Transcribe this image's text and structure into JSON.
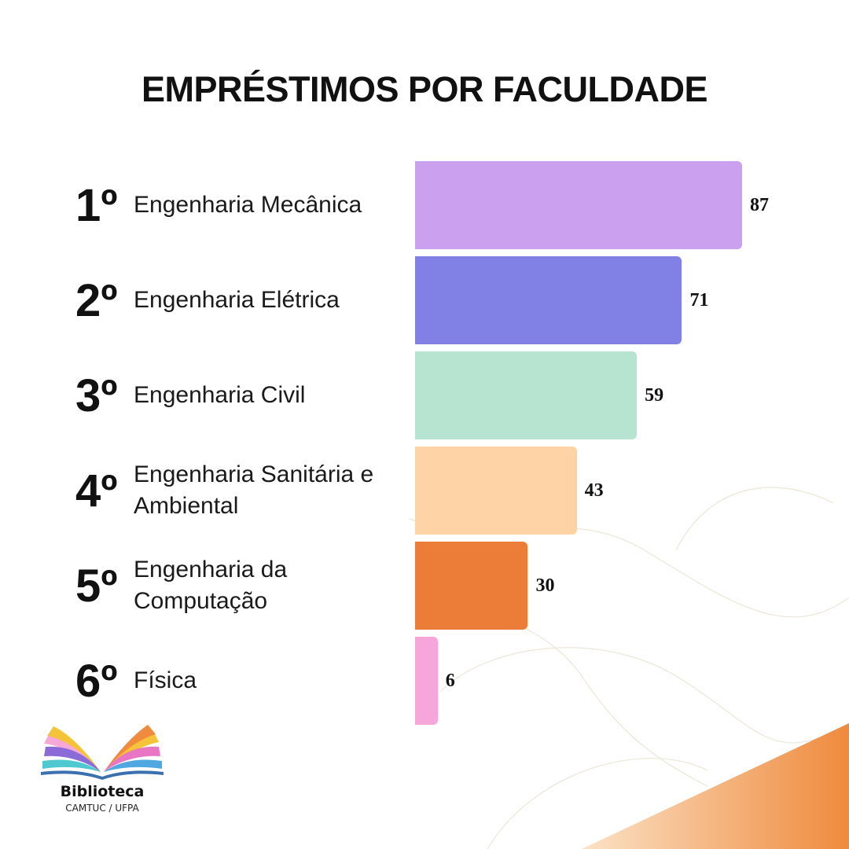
{
  "chart_data": {
    "type": "bar",
    "orientation": "horizontal",
    "title": "EMPRÉSTIMOS POR FACULDADE",
    "ranks": [
      "1º",
      "2º",
      "3º",
      "4º",
      "5º",
      "6º"
    ],
    "categories": [
      "Engenharia Mecânica",
      "Engenharia Elétrica",
      "Engenharia Civil",
      "Engenharia Sanitária e Ambiental",
      "Engenharia da Computação",
      "Física"
    ],
    "values": [
      87,
      71,
      59,
      43,
      30,
      6
    ],
    "colors": [
      "#cba1ef",
      "#8080e5",
      "#b6e4d0",
      "#fed3a6",
      "#ec7d38",
      "#f7a6d9"
    ],
    "xlim": [
      0,
      87
    ],
    "grid": false,
    "legend": "none"
  },
  "logo": {
    "title": "Biblioteca",
    "subtitle": "CAMTUC / UFPA"
  },
  "accent_color": "#f08a3c"
}
